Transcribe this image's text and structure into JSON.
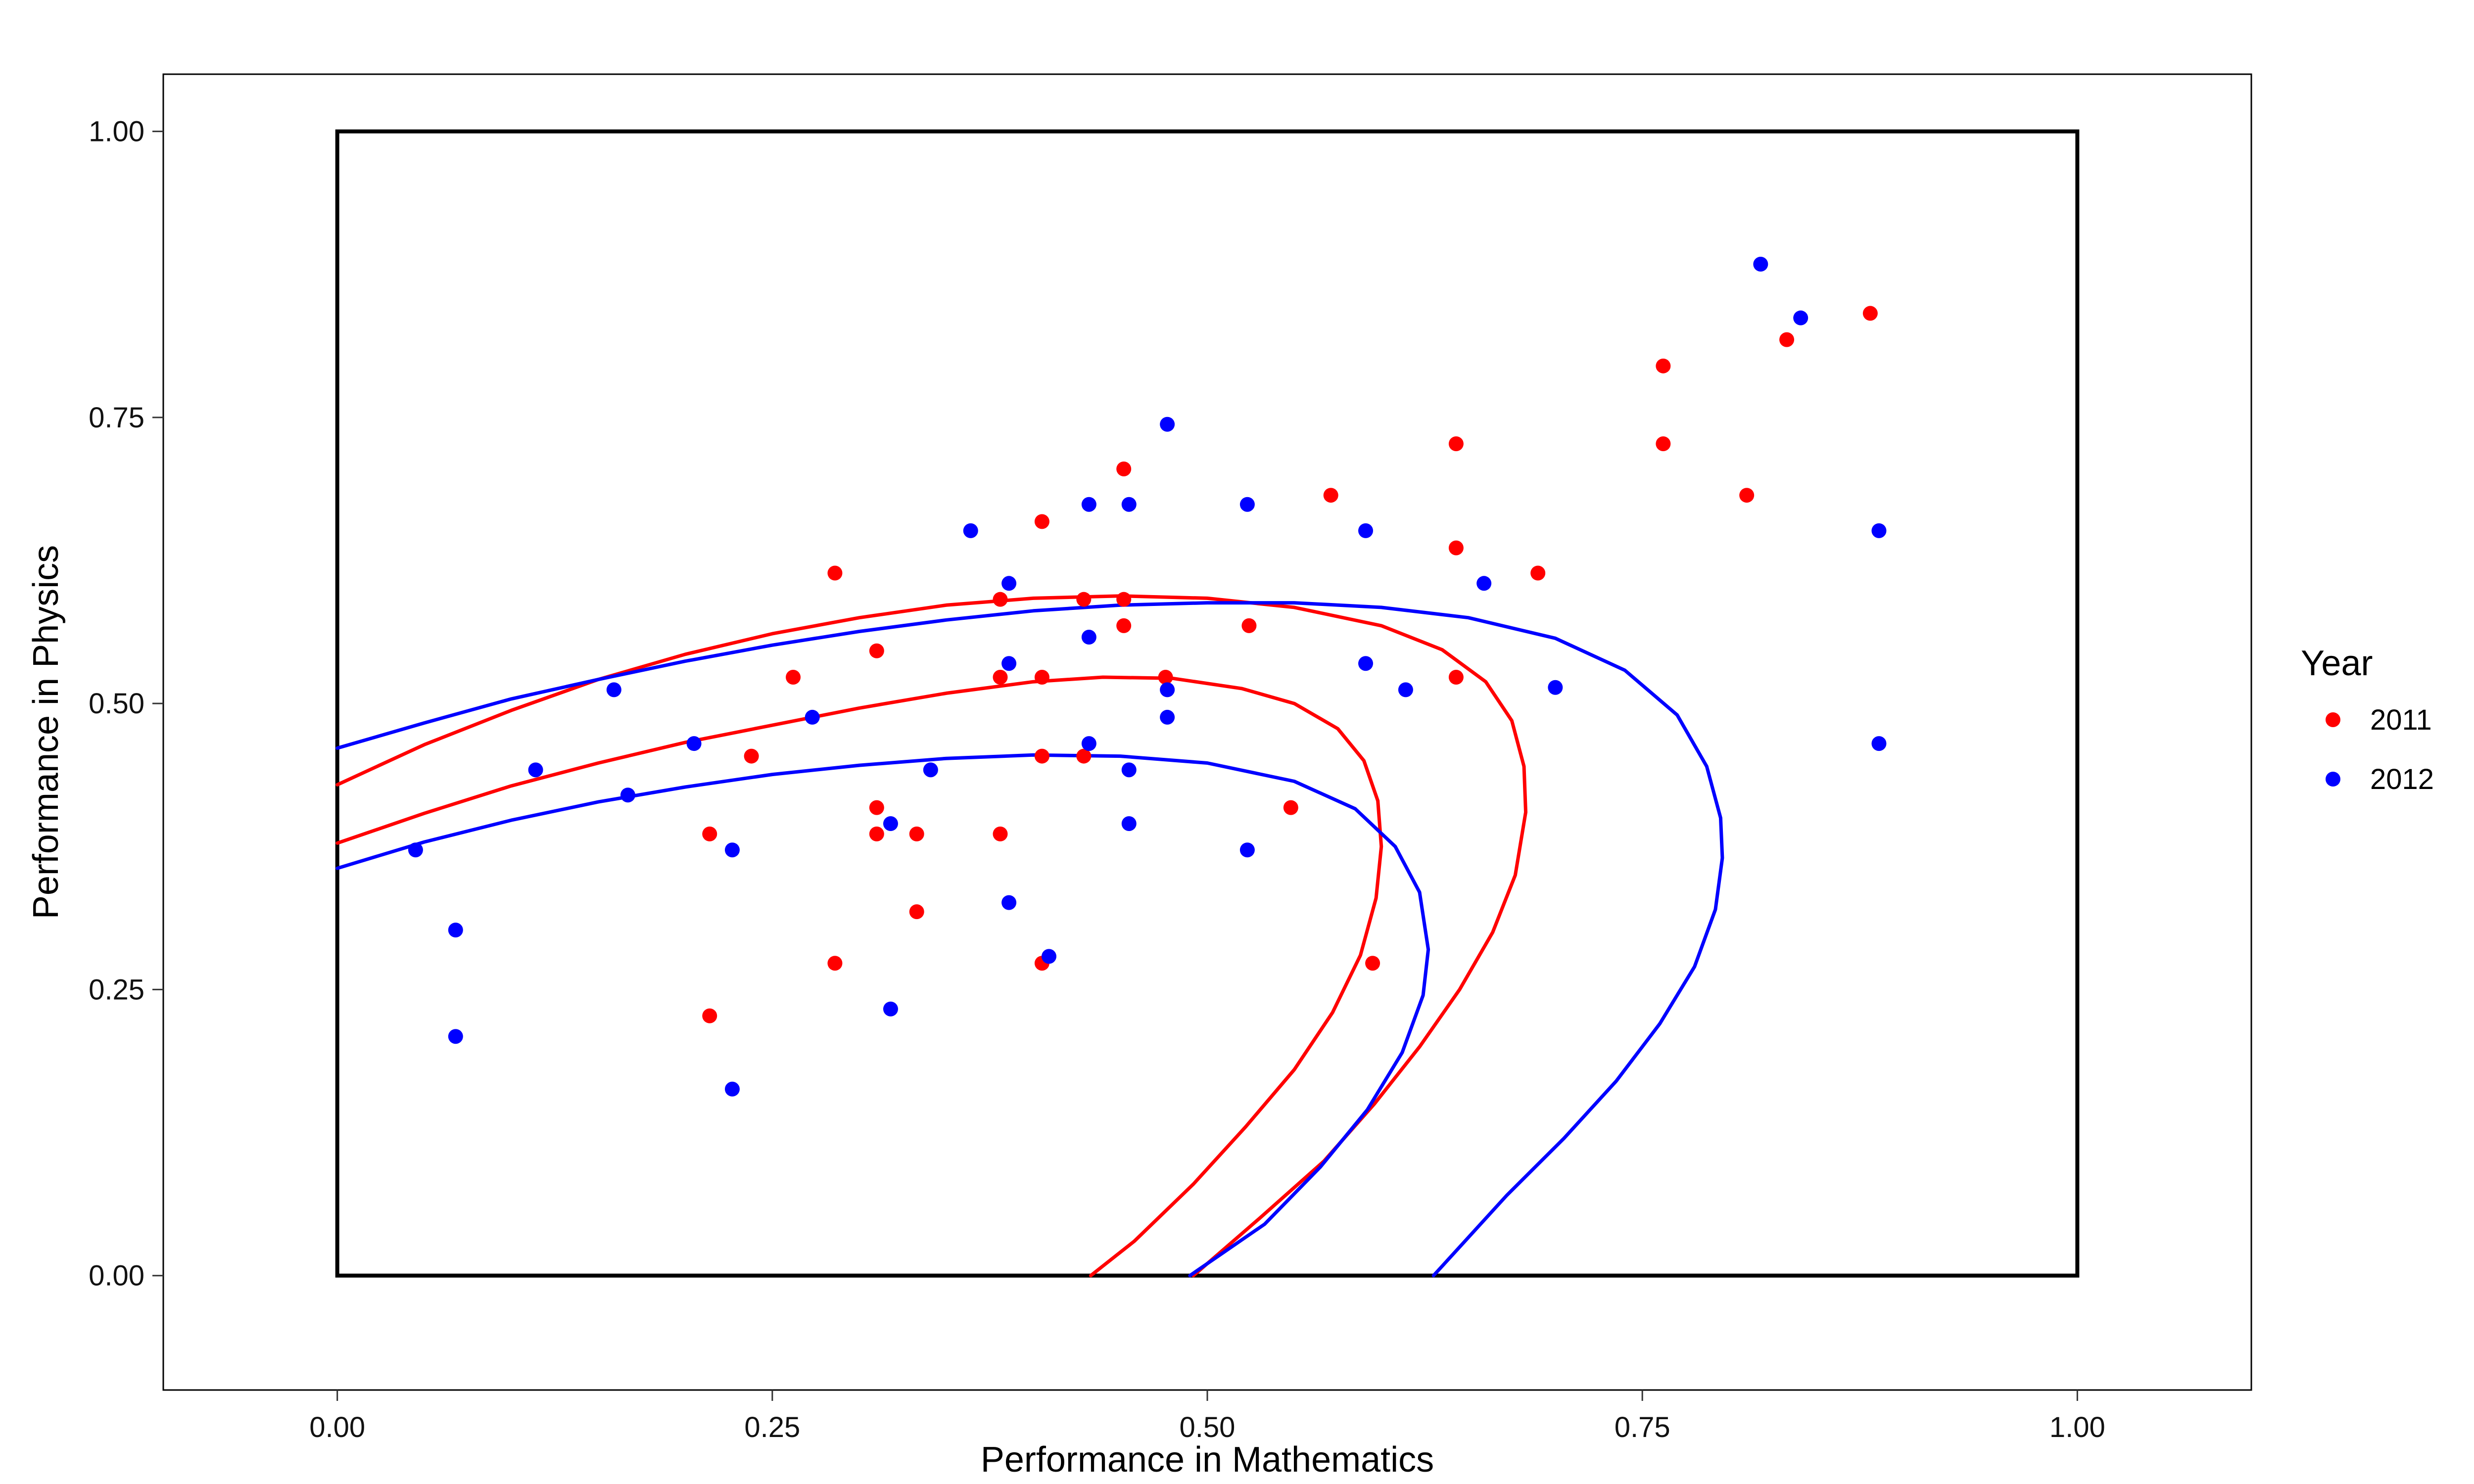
{
  "chart_data": {
    "type": "scatter",
    "title": "",
    "xlabel": "Performance in Mathematics",
    "ylabel": "Performance in Physics",
    "xlim": [
      -0.1,
      1.1
    ],
    "ylim": [
      -0.1,
      1.05
    ],
    "x_ticks": [
      0.0,
      0.25,
      0.5,
      0.75,
      1.0
    ],
    "x_tick_labels": [
      "0.00",
      "0.25",
      "0.50",
      "0.75",
      "1.00"
    ],
    "y_ticks": [
      0.0,
      0.25,
      0.5,
      0.75,
      1.0
    ],
    "y_tick_labels": [
      "0.00",
      "0.25",
      "0.50",
      "0.75",
      "1.00"
    ],
    "grid": false,
    "legend": {
      "title": "Year",
      "position": "right",
      "entries": [
        {
          "label": "2011",
          "color": "#ff0000"
        },
        {
          "label": "2012",
          "color": "#0000ff"
        }
      ]
    },
    "reference_box": {
      "x": [
        0,
        1
      ],
      "y": [
        0,
        1
      ],
      "color": "#000000"
    },
    "series": [
      {
        "name": "2011",
        "color": "#ff0000",
        "points": [
          [
            0.214,
            0.386
          ],
          [
            0.214,
            0.227
          ],
          [
            0.238,
            0.454
          ],
          [
            0.262,
            0.523
          ],
          [
            0.286,
            0.614
          ],
          [
            0.286,
            0.273
          ],
          [
            0.31,
            0.546
          ],
          [
            0.31,
            0.409
          ],
          [
            0.31,
            0.386
          ],
          [
            0.333,
            0.386
          ],
          [
            0.333,
            0.318
          ],
          [
            0.381,
            0.591
          ],
          [
            0.381,
            0.523
          ],
          [
            0.381,
            0.386
          ],
          [
            0.405,
            0.659
          ],
          [
            0.405,
            0.523
          ],
          [
            0.405,
            0.454
          ],
          [
            0.405,
            0.273
          ],
          [
            0.429,
            0.591
          ],
          [
            0.429,
            0.454
          ],
          [
            0.452,
            0.705
          ],
          [
            0.452,
            0.591
          ],
          [
            0.452,
            0.568
          ],
          [
            0.476,
            0.523
          ],
          [
            0.524,
            0.568
          ],
          [
            0.548,
            0.409
          ],
          [
            0.571,
            0.682
          ],
          [
            0.595,
            0.273
          ],
          [
            0.643,
            0.727
          ],
          [
            0.643,
            0.636
          ],
          [
            0.643,
            0.523
          ],
          [
            0.69,
            0.614
          ],
          [
            0.762,
            0.795
          ],
          [
            0.762,
            0.727
          ],
          [
            0.81,
            0.682
          ],
          [
            0.833,
            0.818
          ],
          [
            0.881,
            0.841
          ]
        ]
      },
      {
        "name": "2012",
        "color": "#0000ff",
        "points": [
          [
            0.045,
            0.372
          ],
          [
            0.068,
            0.302
          ],
          [
            0.068,
            0.209
          ],
          [
            0.114,
            0.442
          ],
          [
            0.159,
            0.512
          ],
          [
            0.167,
            0.42
          ],
          [
            0.205,
            0.465
          ],
          [
            0.227,
            0.372
          ],
          [
            0.227,
            0.163
          ],
          [
            0.273,
            0.488
          ],
          [
            0.318,
            0.395
          ],
          [
            0.318,
            0.233
          ],
          [
            0.341,
            0.442
          ],
          [
            0.364,
            0.651
          ],
          [
            0.386,
            0.605
          ],
          [
            0.386,
            0.535
          ],
          [
            0.386,
            0.326
          ],
          [
            0.409,
            0.279
          ],
          [
            0.432,
            0.674
          ],
          [
            0.432,
            0.558
          ],
          [
            0.432,
            0.465
          ],
          [
            0.455,
            0.674
          ],
          [
            0.455,
            0.442
          ],
          [
            0.455,
            0.395
          ],
          [
            0.477,
            0.744
          ],
          [
            0.477,
            0.512
          ],
          [
            0.477,
            0.488
          ],
          [
            0.523,
            0.674
          ],
          [
            0.523,
            0.372
          ],
          [
            0.591,
            0.651
          ],
          [
            0.591,
            0.535
          ],
          [
            0.614,
            0.512
          ],
          [
            0.659,
            0.605
          ],
          [
            0.7,
            0.514
          ],
          [
            0.818,
            0.884
          ],
          [
            0.841,
            0.837
          ],
          [
            0.886,
            0.651
          ],
          [
            0.886,
            0.465
          ]
        ]
      }
    ],
    "curves": [
      {
        "series": "2011",
        "color": "#ff0000",
        "points": [
          [
            0.0,
            0.429
          ],
          [
            0.05,
            0.464
          ],
          [
            0.1,
            0.494
          ],
          [
            0.15,
            0.521
          ],
          [
            0.2,
            0.543
          ],
          [
            0.25,
            0.561
          ],
          [
            0.3,
            0.575
          ],
          [
            0.35,
            0.586
          ],
          [
            0.4,
            0.592
          ],
          [
            0.45,
            0.594
          ],
          [
            0.5,
            0.592
          ],
          [
            0.55,
            0.584
          ],
          [
            0.6,
            0.568
          ],
          [
            0.635,
            0.547
          ],
          [
            0.66,
            0.519
          ],
          [
            0.675,
            0.485
          ],
          [
            0.682,
            0.445
          ],
          [
            0.683,
            0.405
          ],
          [
            0.677,
            0.35
          ],
          [
            0.664,
            0.3
          ],
          [
            0.645,
            0.25
          ],
          [
            0.622,
            0.2
          ],
          [
            0.596,
            0.15
          ],
          [
            0.567,
            0.1
          ],
          [
            0.53,
            0.05
          ],
          [
            0.492,
            0.0
          ]
        ]
      },
      {
        "series": "2011",
        "color": "#ff0000",
        "points": [
          [
            0.0,
            0.378
          ],
          [
            0.05,
            0.404
          ],
          [
            0.1,
            0.428
          ],
          [
            0.15,
            0.448
          ],
          [
            0.2,
            0.466
          ],
          [
            0.25,
            0.481
          ],
          [
            0.3,
            0.496
          ],
          [
            0.35,
            0.509
          ],
          [
            0.4,
            0.519
          ],
          [
            0.44,
            0.523
          ],
          [
            0.48,
            0.522
          ],
          [
            0.52,
            0.513
          ],
          [
            0.55,
            0.5
          ],
          [
            0.575,
            0.478
          ],
          [
            0.59,
            0.45
          ],
          [
            0.598,
            0.415
          ],
          [
            0.6,
            0.375
          ],
          [
            0.597,
            0.33
          ],
          [
            0.588,
            0.28
          ],
          [
            0.572,
            0.23
          ],
          [
            0.55,
            0.18
          ],
          [
            0.522,
            0.13
          ],
          [
            0.492,
            0.08
          ],
          [
            0.458,
            0.03
          ],
          [
            0.433,
            0.0
          ]
        ]
      },
      {
        "series": "2012",
        "color": "#0000ff",
        "points": [
          [
            0.0,
            0.461
          ],
          [
            0.05,
            0.483
          ],
          [
            0.1,
            0.504
          ],
          [
            0.15,
            0.521
          ],
          [
            0.2,
            0.537
          ],
          [
            0.25,
            0.551
          ],
          [
            0.3,
            0.563
          ],
          [
            0.35,
            0.573
          ],
          [
            0.4,
            0.581
          ],
          [
            0.45,
            0.586
          ],
          [
            0.5,
            0.588
          ],
          [
            0.55,
            0.588
          ],
          [
            0.6,
            0.584
          ],
          [
            0.65,
            0.575
          ],
          [
            0.7,
            0.557
          ],
          [
            0.74,
            0.529
          ],
          [
            0.77,
            0.49
          ],
          [
            0.787,
            0.445
          ],
          [
            0.795,
            0.4
          ],
          [
            0.796,
            0.365
          ],
          [
            0.792,
            0.32
          ],
          [
            0.78,
            0.27
          ],
          [
            0.76,
            0.22
          ],
          [
            0.735,
            0.17
          ],
          [
            0.705,
            0.12
          ],
          [
            0.672,
            0.07
          ],
          [
            0.63,
            0.0
          ]
        ]
      },
      {
        "series": "2012",
        "color": "#0000ff",
        "points": [
          [
            0.0,
            0.356
          ],
          [
            0.05,
            0.379
          ],
          [
            0.1,
            0.398
          ],
          [
            0.15,
            0.414
          ],
          [
            0.2,
            0.427
          ],
          [
            0.25,
            0.438
          ],
          [
            0.3,
            0.446
          ],
          [
            0.35,
            0.452
          ],
          [
            0.4,
            0.455
          ],
          [
            0.45,
            0.454
          ],
          [
            0.5,
            0.448
          ],
          [
            0.55,
            0.432
          ],
          [
            0.585,
            0.408
          ],
          [
            0.608,
            0.375
          ],
          [
            0.622,
            0.335
          ],
          [
            0.627,
            0.285
          ],
          [
            0.624,
            0.245
          ],
          [
            0.612,
            0.195
          ],
          [
            0.592,
            0.145
          ],
          [
            0.565,
            0.095
          ],
          [
            0.533,
            0.045
          ],
          [
            0.49,
            0.0
          ]
        ]
      }
    ]
  }
}
